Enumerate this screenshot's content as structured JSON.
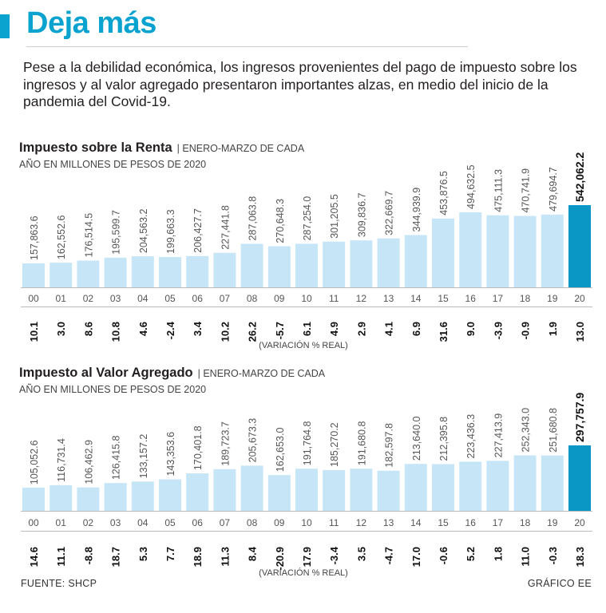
{
  "headline": "Deja más",
  "intro": "Pese a la debilidad económica, los ingresos provenientes del pago de impuesto sobre los ingresos y al valor agregado presentaron importantes alzas, en medio del inicio de la pandemia del Covid-19.",
  "colors": {
    "accent": "#0aa3cf",
    "bar": "#c6e6f8",
    "bar_highlight": "#0a97c5",
    "text": "#231f20"
  },
  "chart_data": [
    {
      "type": "bar",
      "title": "Impuesto sobre la Renta",
      "title_note": "ENERO-MARZO DE CADA",
      "subtitle": "AÑO EN MILLONES DE PESOS DE 2020",
      "categories": [
        "00",
        "01",
        "02",
        "03",
        "04",
        "05",
        "06",
        "07",
        "08",
        "09",
        "10",
        "11",
        "12",
        "13",
        "14",
        "15",
        "16",
        "17",
        "18",
        "19",
        "20"
      ],
      "values": [
        157863.6,
        162552.6,
        176514.5,
        195599.7,
        204563.2,
        199663.3,
        206427.7,
        227441.8,
        287063.8,
        270648.3,
        287254.0,
        301205.5,
        309836.7,
        322669.7,
        344939.9,
        453876.5,
        494632.5,
        475111.3,
        470741.9,
        479694.7,
        542062.2
      ],
      "value_labels": [
        "157,863.6",
        "162,552.6",
        "176,514.5",
        "195,599.7",
        "204,563.2",
        "199,663.3",
        "206,427.7",
        "227,441.8",
        "287,063.8",
        "270,648.3",
        "287,254.0",
        "301,205.5",
        "309,836.7",
        "322,669.7",
        "344,939.9",
        "453,876.5",
        "494,632.5",
        "475,111.3",
        "470,741.9",
        "479,694.7",
        "542,062.2"
      ],
      "variation": [
        "10.1",
        "3.0",
        "8.6",
        "10.8",
        "4.6",
        "-2.4",
        "3.4",
        "10.2",
        "26.2",
        "-5.7",
        "6.1",
        "4.9",
        "2.9",
        "4.1",
        "6.9",
        "31.6",
        "9.0",
        "-3.9",
        "-0.9",
        "1.9",
        "13.0"
      ],
      "variation_label": "(VARIACIÓN % REAL)",
      "highlight_index": 20
    },
    {
      "type": "bar",
      "title": "Impuesto al Valor Agregado",
      "title_note": "ENERO-MARZO DE CADA",
      "subtitle": "AÑO EN MILLONES DE PESOS DE 2020",
      "categories": [
        "00",
        "01",
        "02",
        "03",
        "04",
        "05",
        "06",
        "07",
        "08",
        "09",
        "10",
        "11",
        "12",
        "13",
        "14",
        "15",
        "16",
        "17",
        "18",
        "19",
        "20"
      ],
      "values": [
        105052.6,
        116731.4,
        106462.9,
        126415.8,
        133157.2,
        143353.6,
        170401.8,
        189723.7,
        205673.3,
        162653.0,
        191764.8,
        185270.2,
        191680.8,
        182597.8,
        213640.0,
        212395.8,
        223436.3,
        227413.9,
        252343.0,
        251680.8,
        297757.9
      ],
      "value_labels": [
        "105,052.6",
        "116,731.4",
        "106,462.9",
        "126,415.8",
        "133,157.2",
        "143,353.6",
        "170,401.8",
        "189,723.7",
        "205,673.3",
        "162,653.0",
        "191,764.8",
        "185,270.2",
        "191,680.8",
        "182,597.8",
        "213,640.0",
        "212,395.8",
        "223,436.3",
        "227,413.9",
        "252,343.0",
        "251,680.8",
        "297,757.9"
      ],
      "variation": [
        "14.6",
        "11.1",
        "-8.8",
        "18.7",
        "5.3",
        "7.7",
        "18.9",
        "11.3",
        "8.4",
        "-20.9",
        "17.9",
        "-3.4",
        "3.5",
        "-4.7",
        "17.0",
        "-0.6",
        "5.2",
        "1.8",
        "11.0",
        "-0.3",
        "18.3"
      ],
      "variation_label": "(VARIACIÓN % REAL)",
      "highlight_index": 20
    }
  ],
  "footer": {
    "source": "FUENTE: SHCP",
    "credit": "GRÁFICO EE"
  }
}
